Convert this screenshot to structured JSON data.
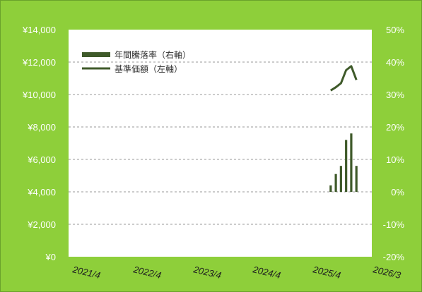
{
  "colors": {
    "background": "#8ecf3a",
    "plot_bg": "#ffffff",
    "series": "#3f5a2a",
    "grid": "#9a9a9a"
  },
  "chart_data": {
    "type": "bar+line",
    "title": "",
    "left_axis": {
      "label": "",
      "ticks": [
        "¥14,000",
        "¥12,000",
        "¥10,000",
        "¥8,000",
        "¥6,000",
        "¥4,000",
        "¥2,000",
        "¥0"
      ],
      "range": [
        0,
        14000
      ]
    },
    "right_axis": {
      "label": "",
      "ticks": [
        "50%",
        "40%",
        "30%",
        "20%",
        "10%",
        "0%",
        "-10%",
        "-20%"
      ],
      "range": [
        -20,
        50
      ]
    },
    "x_ticks": [
      "2021/4",
      "2022/4",
      "2023/4",
      "2024/4",
      "2025/4",
      "2026/3"
    ],
    "x_range_months": [
      "2021-04",
      "2026-03"
    ],
    "grid": true,
    "legend_position": "top-left",
    "legend": [
      {
        "label": "年間騰落率（右軸）",
        "kind": "bar"
      },
      {
        "label": "基準価額（左軸）",
        "kind": "line"
      }
    ],
    "series": [
      {
        "name": "年間騰落率（右軸）",
        "type": "bar",
        "axis": "right",
        "points": [
          {
            "x": "2025-07",
            "y": 2
          },
          {
            "x": "2025-08",
            "y": 5.5
          },
          {
            "x": "2025-09",
            "y": 8
          },
          {
            "x": "2025-10",
            "y": 16
          },
          {
            "x": "2025-11",
            "y": 18
          },
          {
            "x": "2025-12",
            "y": 8
          }
        ]
      },
      {
        "name": "基準価額（左軸）",
        "type": "line",
        "axis": "left",
        "points": [
          {
            "x": "2025-07",
            "y": 10250
          },
          {
            "x": "2025-08",
            "y": 10450
          },
          {
            "x": "2025-09",
            "y": 10700
          },
          {
            "x": "2025-10",
            "y": 11500
          },
          {
            "x": "2025-11",
            "y": 11750
          },
          {
            "x": "2025-12",
            "y": 10900
          }
        ]
      }
    ]
  }
}
